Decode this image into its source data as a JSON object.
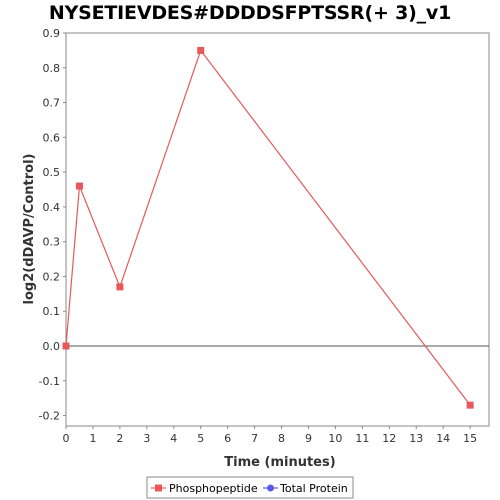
{
  "chart_data": {
    "type": "line",
    "title": "NYSETIEVDES#DDDDSFPTSSR(+ 3)_v1",
    "xlabel": "Time (minutes)",
    "ylabel": "log2(dDAVP/Control)",
    "xlim": [
      0,
      15.7
    ],
    "ylim": [
      -0.23,
      0.9
    ],
    "xticks": [
      0,
      1,
      2,
      3,
      4,
      5,
      6,
      7,
      8,
      9,
      10,
      11,
      12,
      13,
      14,
      15
    ],
    "yticks": [
      -0.2,
      -0.1,
      0.0,
      0.1,
      0.2,
      0.3,
      0.4,
      0.5,
      0.6,
      0.7,
      0.8,
      0.9
    ],
    "ytick_labels": [
      "-0.2",
      "-0.1",
      "0.0",
      "0.1",
      "0.2",
      "0.3",
      "0.4",
      "0.5",
      "0.6",
      "0.7",
      "0.8",
      "0.9"
    ],
    "zero_line": true,
    "grid": false,
    "legend_position": "bottom",
    "series": [
      {
        "name": "Phosphopeptide",
        "color": "#e8585a",
        "marker": "square",
        "x": [
          0,
          0.5,
          2,
          5,
          15
        ],
        "y": [
          0.0,
          0.46,
          0.17,
          0.85,
          -0.17
        ]
      },
      {
        "name": "Total Protein",
        "color": "#5a5ae8",
        "marker": "circle",
        "x": [],
        "y": []
      }
    ]
  }
}
